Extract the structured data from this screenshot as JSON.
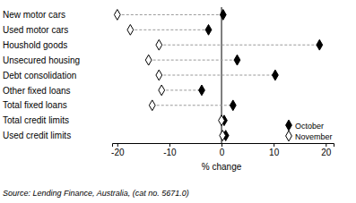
{
  "chart_data": {
    "type": "dot",
    "orientation": "horizontal",
    "categories": [
      "New motor cars",
      "Used motor cars",
      "Houshold goods",
      "Unsecured housing",
      "Debt consolidation",
      "Other fixed loans",
      "Total fixed loans",
      "Total credit limits",
      "Used credit limits"
    ],
    "series": [
      {
        "name": "October",
        "color": "#000000",
        "marker": "diamond",
        "values": [
          0.3,
          -2.5,
          18.8,
          3.0,
          10.3,
          -3.8,
          2.2,
          0.5,
          0.8
        ]
      },
      {
        "name": "November",
        "color": "#000000",
        "marker": "diamond-open",
        "values": [
          -20.0,
          -17.5,
          -12.0,
          -14.0,
          -12.0,
          -11.5,
          -13.3,
          0.0,
          0.2
        ]
      }
    ],
    "x_label": "% change",
    "xlim": [
      -21,
      21.5
    ],
    "xticks": [
      -20,
      -10,
      0,
      10,
      20
    ],
    "legend": "lower right",
    "annotations": [
      "Source: Lending Finance, Australia, (cat no. 5671.0)"
    ]
  }
}
